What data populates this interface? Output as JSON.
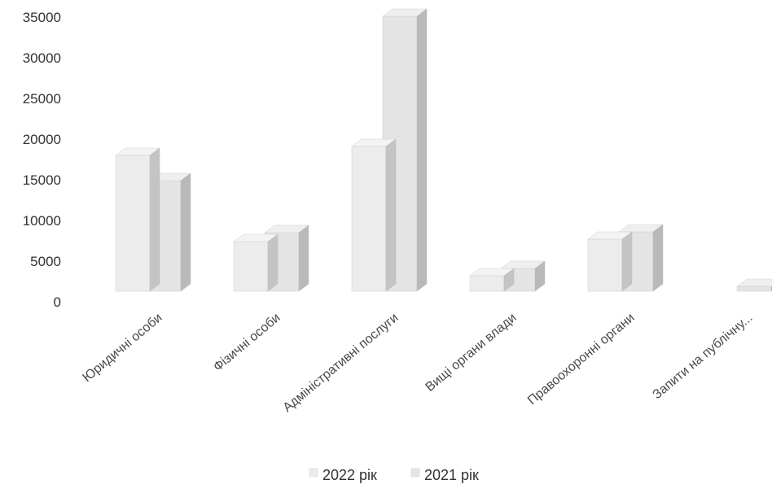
{
  "chart_data": {
    "type": "bar",
    "categories": [
      "Юридичні особи",
      "Фізичні особи",
      "Адміністративні послуги",
      "Вищі органи влади",
      "Правоохоронні органи",
      "Запити на публічну..."
    ],
    "series": [
      {
        "name": "2022 рік",
        "values": [
          16700,
          6100,
          17800,
          1900,
          6400,
          0
        ],
        "color": "#ebebeb"
      },
      {
        "name": "2021 рік",
        "values": [
          13600,
          7200,
          33800,
          2800,
          7300,
          600
        ],
        "color": "#e5e5e5"
      }
    ],
    "y_ticks": [
      "0",
      "5000",
      "10000",
      "15000",
      "20000",
      "25000",
      "30000",
      "35000"
    ],
    "ylim": [
      0,
      35000
    ],
    "title": "",
    "xlabel": "",
    "ylabel": "",
    "legend_position": "bottom",
    "grid": false,
    "style": "3d-column"
  }
}
